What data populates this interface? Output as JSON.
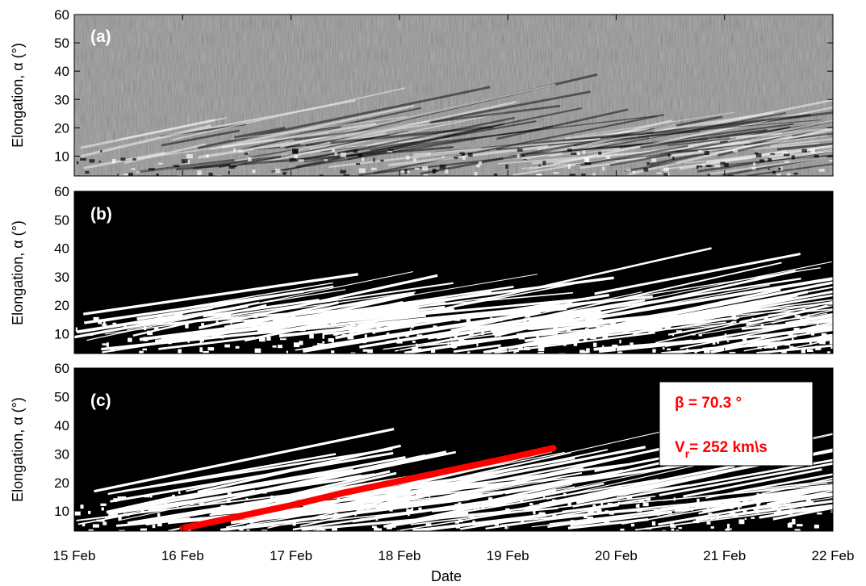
{
  "chart_data": [
    {
      "type": "heatmap",
      "panel_label": "(a)",
      "ylabel": "Elongation, α (°)",
      "ylim": [
        3,
        60
      ],
      "yticks": [
        10,
        20,
        30,
        40,
        50,
        60
      ],
      "colormap": "grayscale difference map"
    },
    {
      "type": "heatmap",
      "panel_label": "(b)",
      "ylabel": "Elongation,  α (°)",
      "ylim": [
        3,
        60
      ],
      "yticks": [
        10,
        20,
        30,
        40,
        50,
        60
      ],
      "colormap": "binary (black background, white tracks)"
    },
    {
      "type": "heatmap",
      "panel_label": "(c)",
      "ylabel": "Elongation,  α (°)",
      "ylim": [
        3,
        60
      ],
      "yticks": [
        10,
        20,
        30,
        40,
        50,
        60
      ],
      "colormap": "binary (black background, white tracks)",
      "fit_line": {
        "color": "#ff0000",
        "x_days": [
          1.0,
          1.5,
          2.0,
          2.5,
          3.0,
          3.5,
          4.0,
          4.42
        ],
        "y": [
          4,
          8,
          12,
          16.5,
          20.5,
          24.5,
          28.5,
          32
        ]
      },
      "annotation": {
        "beta": "β = 70.3 °",
        "vr_main": "V",
        "vr_sub": "r",
        "vr_rest": "= 252 km\\s",
        "color": "#ff0000"
      }
    }
  ],
  "xaxis": {
    "label": "Date",
    "ticks": [
      "15 Feb",
      "16 Feb",
      "17 Feb",
      "18 Feb",
      "19 Feb",
      "20 Feb",
      "21 Feb",
      "22 Feb"
    ],
    "xlim_days": [
      0,
      7
    ]
  },
  "colors": {
    "fit": "#ff0000",
    "background_binary": "#000000",
    "panel_a_base": "#8c8c8c"
  }
}
